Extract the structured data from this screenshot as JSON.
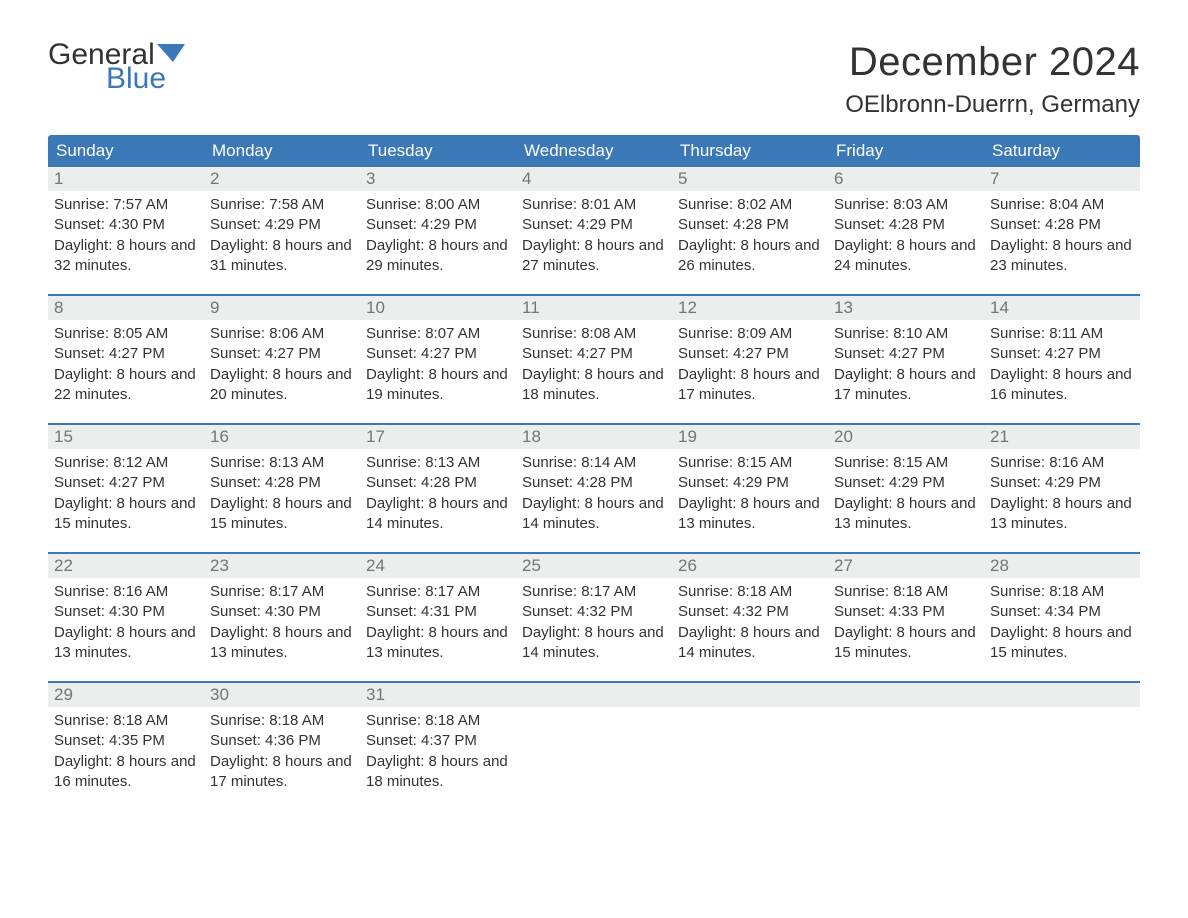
{
  "brand": {
    "word1": "General",
    "word2": "Blue",
    "flag_color": "#3b78b8",
    "text_color": "#333333"
  },
  "title": "December 2024",
  "location": "OElbronn-Duerrn, Germany",
  "colors": {
    "header_bg": "#3b78b8",
    "header_text": "#ffffff",
    "daynum_bg": "#eceded",
    "daynum_text": "#757575",
    "body_text": "#333333",
    "page_bg": "#ffffff",
    "week_border": "#3b78b8"
  },
  "weekdays": [
    "Sunday",
    "Monday",
    "Tuesday",
    "Wednesday",
    "Thursday",
    "Friday",
    "Saturday"
  ],
  "weeks": [
    [
      {
        "n": "1",
        "sr": "7:57 AM",
        "ss": "4:30 PM",
        "dl": "8 hours and 32 minutes."
      },
      {
        "n": "2",
        "sr": "7:58 AM",
        "ss": "4:29 PM",
        "dl": "8 hours and 31 minutes."
      },
      {
        "n": "3",
        "sr": "8:00 AM",
        "ss": "4:29 PM",
        "dl": "8 hours and 29 minutes."
      },
      {
        "n": "4",
        "sr": "8:01 AM",
        "ss": "4:29 PM",
        "dl": "8 hours and 27 minutes."
      },
      {
        "n": "5",
        "sr": "8:02 AM",
        "ss": "4:28 PM",
        "dl": "8 hours and 26 minutes."
      },
      {
        "n": "6",
        "sr": "8:03 AM",
        "ss": "4:28 PM",
        "dl": "8 hours and 24 minutes."
      },
      {
        "n": "7",
        "sr": "8:04 AM",
        "ss": "4:28 PM",
        "dl": "8 hours and 23 minutes."
      }
    ],
    [
      {
        "n": "8",
        "sr": "8:05 AM",
        "ss": "4:27 PM",
        "dl": "8 hours and 22 minutes."
      },
      {
        "n": "9",
        "sr": "8:06 AM",
        "ss": "4:27 PM",
        "dl": "8 hours and 20 minutes."
      },
      {
        "n": "10",
        "sr": "8:07 AM",
        "ss": "4:27 PM",
        "dl": "8 hours and 19 minutes."
      },
      {
        "n": "11",
        "sr": "8:08 AM",
        "ss": "4:27 PM",
        "dl": "8 hours and 18 minutes."
      },
      {
        "n": "12",
        "sr": "8:09 AM",
        "ss": "4:27 PM",
        "dl": "8 hours and 17 minutes."
      },
      {
        "n": "13",
        "sr": "8:10 AM",
        "ss": "4:27 PM",
        "dl": "8 hours and 17 minutes."
      },
      {
        "n": "14",
        "sr": "8:11 AM",
        "ss": "4:27 PM",
        "dl": "8 hours and 16 minutes."
      }
    ],
    [
      {
        "n": "15",
        "sr": "8:12 AM",
        "ss": "4:27 PM",
        "dl": "8 hours and 15 minutes."
      },
      {
        "n": "16",
        "sr": "8:13 AM",
        "ss": "4:28 PM",
        "dl": "8 hours and 15 minutes."
      },
      {
        "n": "17",
        "sr": "8:13 AM",
        "ss": "4:28 PM",
        "dl": "8 hours and 14 minutes."
      },
      {
        "n": "18",
        "sr": "8:14 AM",
        "ss": "4:28 PM",
        "dl": "8 hours and 14 minutes."
      },
      {
        "n": "19",
        "sr": "8:15 AM",
        "ss": "4:29 PM",
        "dl": "8 hours and 13 minutes."
      },
      {
        "n": "20",
        "sr": "8:15 AM",
        "ss": "4:29 PM",
        "dl": "8 hours and 13 minutes."
      },
      {
        "n": "21",
        "sr": "8:16 AM",
        "ss": "4:29 PM",
        "dl": "8 hours and 13 minutes."
      }
    ],
    [
      {
        "n": "22",
        "sr": "8:16 AM",
        "ss": "4:30 PM",
        "dl": "8 hours and 13 minutes."
      },
      {
        "n": "23",
        "sr": "8:17 AM",
        "ss": "4:30 PM",
        "dl": "8 hours and 13 minutes."
      },
      {
        "n": "24",
        "sr": "8:17 AM",
        "ss": "4:31 PM",
        "dl": "8 hours and 13 minutes."
      },
      {
        "n": "25",
        "sr": "8:17 AM",
        "ss": "4:32 PM",
        "dl": "8 hours and 14 minutes."
      },
      {
        "n": "26",
        "sr": "8:18 AM",
        "ss": "4:32 PM",
        "dl": "8 hours and 14 minutes."
      },
      {
        "n": "27",
        "sr": "8:18 AM",
        "ss": "4:33 PM",
        "dl": "8 hours and 15 minutes."
      },
      {
        "n": "28",
        "sr": "8:18 AM",
        "ss": "4:34 PM",
        "dl": "8 hours and 15 minutes."
      }
    ],
    [
      {
        "n": "29",
        "sr": "8:18 AM",
        "ss": "4:35 PM",
        "dl": "8 hours and 16 minutes."
      },
      {
        "n": "30",
        "sr": "8:18 AM",
        "ss": "4:36 PM",
        "dl": "8 hours and 17 minutes."
      },
      {
        "n": "31",
        "sr": "8:18 AM",
        "ss": "4:37 PM",
        "dl": "8 hours and 18 minutes."
      },
      null,
      null,
      null,
      null
    ]
  ],
  "labels": {
    "sunrise": "Sunrise: ",
    "sunset": "Sunset: ",
    "daylight": "Daylight: "
  }
}
